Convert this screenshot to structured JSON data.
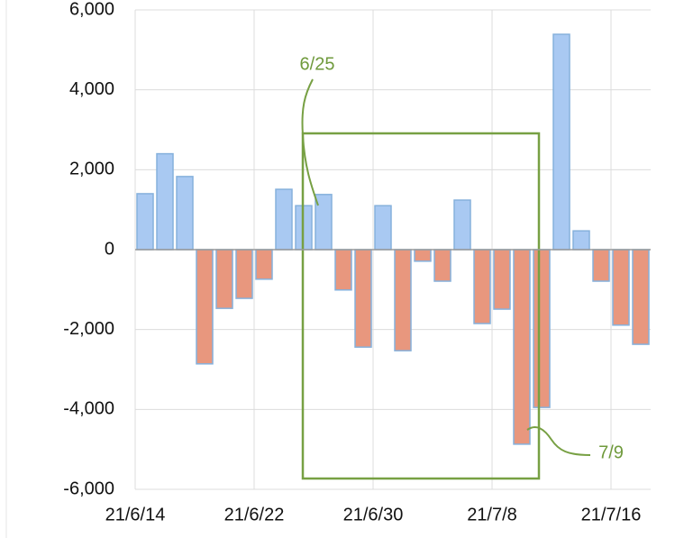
{
  "chart_data": {
    "type": "bar",
    "categories": [
      "21/6/14",
      null,
      null,
      null,
      null,
      null,
      "21/6/22",
      null,
      null,
      null,
      null,
      null,
      "21/6/30",
      null,
      null,
      null,
      null,
      null,
      "21/7/8",
      null,
      null,
      null,
      null,
      null,
      "21/7/16",
      null
    ],
    "values": [
      1400,
      2400,
      1830,
      -2860,
      -1470,
      -1220,
      -740,
      1510,
      1100,
      1380,
      -1010,
      -2440,
      1100,
      -2530,
      -290,
      -790,
      1240,
      -1850,
      -1490,
      -4870,
      -3950,
      5390,
      470,
      -790,
      -1890,
      -2370
    ],
    "positive_color": "#a9c9f2",
    "negative_color": "#e8977e",
    "ylim": [
      -6000,
      6000
    ],
    "yticks": [
      {
        "value": -6000,
        "label": "-6,000"
      },
      {
        "value": -4000,
        "label": "-4,000"
      },
      {
        "value": -2000,
        "label": "-2,000"
      },
      0,
      {
        "value": 2000,
        "label": "2,000"
      },
      {
        "value": 4000,
        "label": "4,000"
      },
      {
        "value": 6000,
        "label": "6,000"
      }
    ],
    "grid": true,
    "annotations": [
      "6/25",
      "7/9"
    ]
  }
}
